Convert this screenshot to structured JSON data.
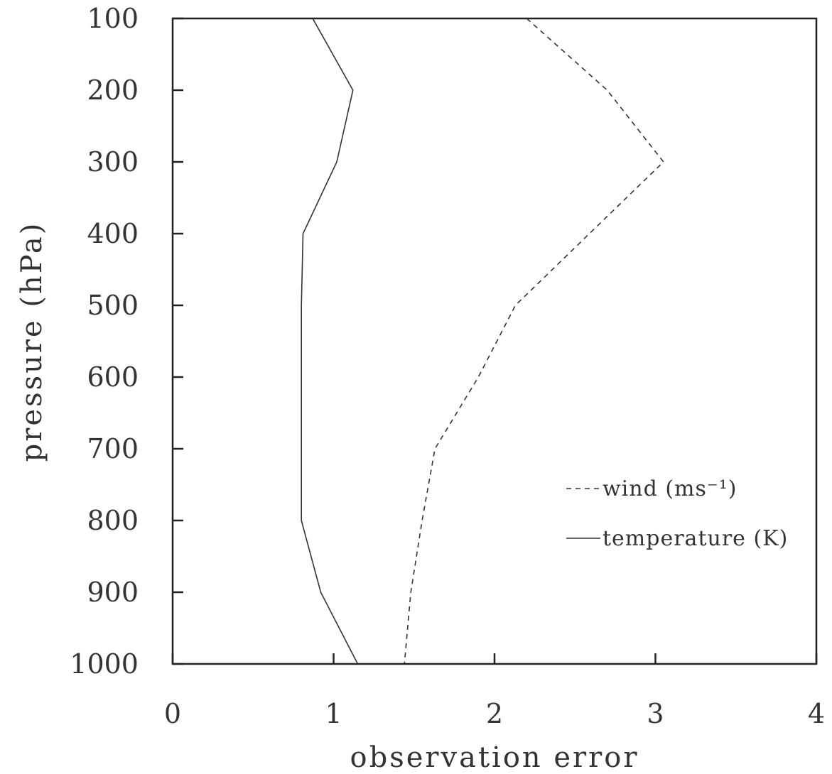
{
  "chart_data": {
    "type": "line",
    "xlabel": "observation error",
    "ylabel": "pressure (hPa)",
    "xlim": [
      0,
      4
    ],
    "ylim": [
      100,
      1000
    ],
    "y_inverted": true,
    "x_ticks": [
      "0",
      "1",
      "2",
      "3",
      "4"
    ],
    "y_ticks": [
      "100",
      "200",
      "300",
      "400",
      "500",
      "600",
      "700",
      "800",
      "900",
      "1000"
    ],
    "grid": false,
    "legend_position": "bottom-right",
    "series": [
      {
        "name": "wind (ms⁻¹)",
        "style": "dashed",
        "color": "#333333",
        "pressure": [
          100,
          200,
          300,
          500,
          600,
          700,
          800,
          900,
          1000
        ],
        "values": [
          2.2,
          2.7,
          3.05,
          2.13,
          1.9,
          1.63,
          1.55,
          1.48,
          1.44
        ]
      },
      {
        "name": "temperature (K)",
        "style": "solid",
        "color": "#333333",
        "pressure": [
          100,
          200,
          300,
          400,
          500,
          600,
          700,
          800,
          900,
          1000
        ],
        "values": [
          0.87,
          1.12,
          1.02,
          0.81,
          0.8,
          0.8,
          0.8,
          0.8,
          0.92,
          1.15
        ]
      }
    ]
  }
}
